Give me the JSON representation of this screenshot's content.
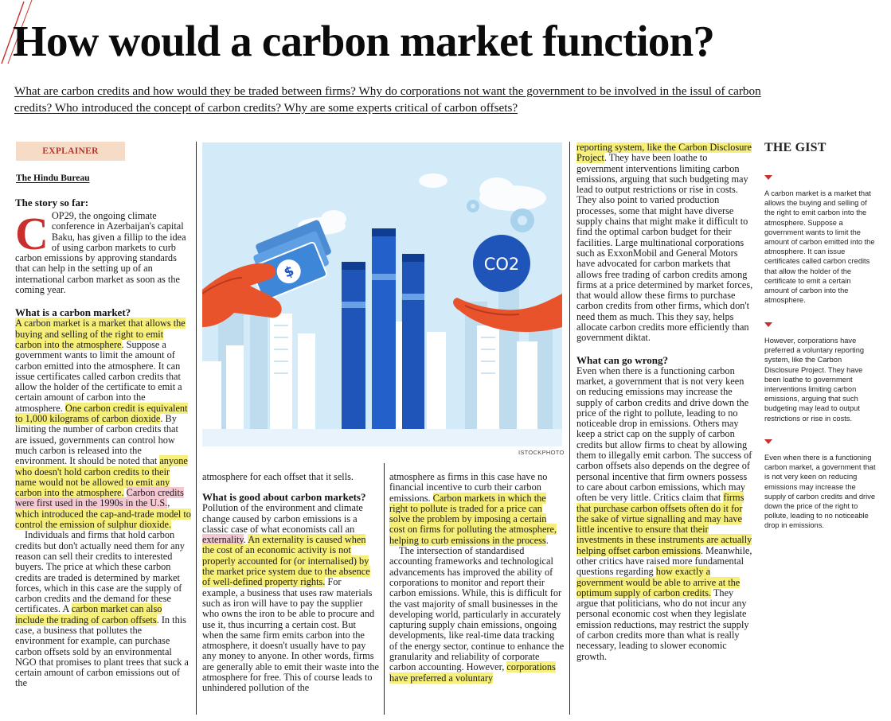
{
  "headline": "How would a carbon market function?",
  "dek": "What are carbon credits and how would they be traded between firms? Why do corporations not want the government to be involved in the issul of carbon credits? Who introduced the concept of carbon credits? Why are some experts critical of carbon offsets?",
  "section_label": "EXPLAINER",
  "byline": "The Hindu Bureau",
  "photo_credit": "ISTOCKPHOTO",
  "illustration": {
    "co2_label": "CO2",
    "currency_symbol": "$"
  },
  "colors": {
    "accent_red": "#c8302e",
    "highlight_yellow": "#f6ef7a",
    "highlight_pink": "#f4c8d2",
    "badge_bg": "#f6dcc6",
    "illustration_sky": "#cfe8f7"
  },
  "col1": {
    "story_heading": "The story so far:",
    "dropcap": "C",
    "story_text": "OP29, the ongoing climate conference in Azerbaijan's capital Baku, has given a fillip to the idea of using carbon markets to curb carbon emissions by approving standards that can help in the setting up of an international carbon market as soon as the coming year.",
    "h_market": "What is a carbon market?",
    "p1_hl1": "A carbon market is a market that allows the buying and selling of the right to emit carbon into the atmosphere",
    "p1_t1": ". Suppose a government wants to limit the amount of carbon emitted into the atmosphere. It can issue certificates called carbon credits that allow the holder of the certificate to emit a certain amount of carbon into the atmosphere. ",
    "p1_hl2": "One carbon credit is equivalent to 1,000 kilograms of carbon dioxide",
    "p1_t2": ". By limiting the number of carbon credits that are issued, governments can control how much carbon is released into the environment. It should be noted that ",
    "p1_hl3": "anyone who doesn't hold carbon credits to their name would not be allowed to emit any carbon into the atmosphere.",
    "p1_t3": " ",
    "p1_hl4": "Carbon credits were first used in the 1990s in the U.S.",
    "p1_t4": ", ",
    "p1_hl5": "which introduced the cap-and-trade model to control the emission of sulphur dioxide.",
    "p2_t1": "Individuals and firms that hold carbon credits but don't actually need them for any reason can sell their credits to interested buyers. The price at which these carbon credits are traded is determined by market forces, which in this case are the supply of carbon credits and the demand for these certificates. A ",
    "p2_hl1": "carbon market can also include the trading of carbon offsets",
    "p2_t2": ". In this case, a business that pollutes the environment for example, can purchase carbon offsets sold by an environmental NGO that promises to plant trees that suck a certain amount of carbon emissions out of the"
  },
  "col2": {
    "p1": "atmosphere for each offset that it sells.",
    "h_good": "What is good about carbon markets?",
    "p2_t1": "Pollution of the environment and climate change caused by carbon emissions is a classic case of what economists call an ",
    "p2_hlp": "externality",
    "p2_t2": ". ",
    "p2_hl1": "An externality is caused when the cost of an economic activity is not properly accounted for (or internalised) by the market price system due to the absence of well-defined property rights.",
    "p2_t3": " For example, a business that uses raw materials such as iron will have to pay the supplier who owns the iron to be able to procure and use it, thus incurring a certain cost. But when the same firm emits carbon into the atmosphere, it doesn't usually have to pay any money to anyone. In other words, firms are generally able to emit their waste into the atmosphere for free. This of course leads to unhindered pollution of the"
  },
  "col3": {
    "p1_t1": "atmosphere as firms in this case have no financial incentive to curb their carbon emissions. ",
    "p1_hl1": "Carbon markets in which the right to pollute is traded for a price can solve the problem by imposing a certain cost on firms for polluting the atmosphere, helping to curb emissions in the process",
    "p1_t2": ".",
    "p2_t1": "The intersection of standardised accounting frameworks and technological advancements has improved the ability of corporations to monitor and report their carbon emissions. While, this is difficult for the vast majority of small businesses in the developing world, particularly in accurately capturing supply chain emissions, ongoing developments, like real-time data tracking of the energy sector, continue to enhance the granularity and reliability of corporate carbon accounting. However, ",
    "p2_hl1": "corporations have preferred a voluntary"
  },
  "col4": {
    "p1_hl1": "reporting system, like the Carbon Disclosure Project",
    "p1_t1": ". They have been loathe to government interventions limiting carbon emissions, arguing that such budgeting may lead to output restrictions or rise in costs. They also point to varied production processes, some that might have diverse supply chains that might make it difficult to find the optimal carbon budget for their facilities. Large multinational corporations such as ExxonMobil and General Motors have advocated for carbon markets that allows free trading of carbon credits among firms at a price determined by market forces, that would allow these firms to purchase carbon credits from other firms, which don't need them as much. This they say, helps allocate carbon credits more efficiently than government diktat.",
    "h_wrong": "What can go wrong?",
    "p2_t1": "Even when there is a functioning carbon market, a government that is not very keen on reducing emissions may increase the supply of carbon credits and drive down the price of the right to pollute, leading to no noticeable drop in emissions. Others may keep a strict cap on the supply of carbon credits but allow firms to cheat by allowing them to illegally emit carbon. The success of carbon offsets also depends on the degree of personal incentive that firm owners possess to care about carbon emissions, which may often be very little. Critics claim that ",
    "p2_hl1": "firms that purchase carbon offsets often do it for the sake of virtue signalling and may have little incentive to ensure that their investments in these instruments are actually helping offset carbon emissions",
    "p2_t2": ". Meanwhile, other critics have raised more fundamental questions regarding ",
    "p2_hl2": "how exactly a government would be able to arrive at the optimum supply of carbon credits.",
    "p2_t3": " They argue that politicians, who do not incur any personal economic cost when they legislate emission reductions, may restrict the supply of carbon credits more than what is really necessary, leading to slower economic growth."
  },
  "gist": {
    "title": "THE GIST",
    "points": [
      "A carbon market is a market that allows the buying and selling of the right to emit carbon into the atmosphere. Suppose a government wants to limit the amount of carbon emitted into the atmosphere. It can issue certificates called carbon credits that allow the holder of the certificate to emit a certain amount of carbon into the atmosphere.",
      "However, corporations have preferred a voluntary reporting system, like the Carbon Disclosure Project. They have been loathe to government interventions limiting carbon emissions, arguing that such budgeting may lead to output restrictions or rise in costs.",
      "Even when there is a functioning carbon market, a government that is not very keen on reducing emissions may increase the supply of carbon credits and drive down the price of the right to pollute, leading to no noticeable drop in emissions."
    ]
  }
}
